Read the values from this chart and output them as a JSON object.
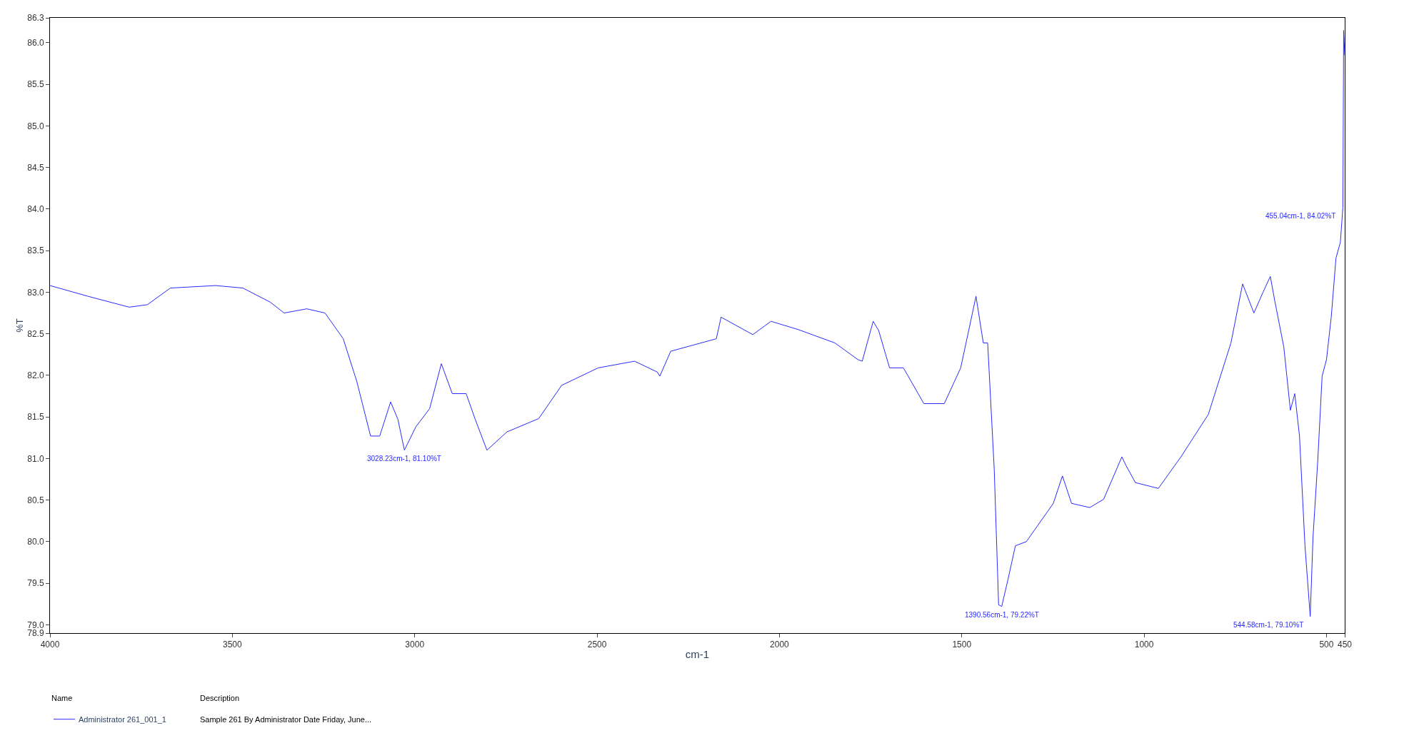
{
  "chart_data": {
    "type": "line",
    "xlabel": "cm-1",
    "ylabel": "%T",
    "xlim": [
      4000,
      450
    ],
    "xticks": [
      4000,
      3500,
      3000,
      2500,
      2000,
      1500,
      1000,
      500,
      450
    ],
    "ylim": [
      78.9,
      86.3
    ],
    "yticks": [
      {
        "value": 78.9,
        "label": "78.9"
      },
      {
        "value": 79.0,
        "label": "79.0"
      },
      {
        "value": 79.5,
        "label": "79.5"
      },
      {
        "value": 80.0,
        "label": "80.0"
      },
      {
        "value": 80.5,
        "label": "80.5"
      },
      {
        "value": 81.0,
        "label": "81.0"
      },
      {
        "value": 81.5,
        "label": "81.5"
      },
      {
        "value": 82.0,
        "label": "82.0"
      },
      {
        "value": 82.5,
        "label": "82.5"
      },
      {
        "value": 83.0,
        "label": "83.0"
      },
      {
        "value": 83.5,
        "label": "83.5"
      },
      {
        "value": 84.0,
        "label": "84.0"
      },
      {
        "value": 84.5,
        "label": "84.5"
      },
      {
        "value": 85.0,
        "label": "85.0"
      },
      {
        "value": 85.5,
        "label": "85.5"
      },
      {
        "value": 86.0,
        "label": "86.0"
      },
      {
        "value": 86.3,
        "label": "86.3"
      }
    ],
    "legend": "bottom",
    "marker": "none",
    "line_style": "solid",
    "series": [
      {
        "name": "Administrator 261_001_1",
        "color": "#2a2aff",
        "x": [
          4000,
          3895,
          3783,
          3733,
          3670,
          3546,
          3471,
          3396,
          3358,
          3296,
          3246,
          3196,
          3159,
          3121,
          3096,
          3066,
          3046,
          3028.23,
          2997,
          2959,
          2927,
          2897,
          2859,
          2834,
          2802,
          2747,
          2660,
          2597,
          2497,
          2397,
          2335,
          2328,
          2298,
          2173,
          2160,
          2073,
          2023,
          1948,
          1848,
          1785,
          1773,
          1743,
          1728,
          1698,
          1660,
          1604,
          1548,
          1503,
          1461,
          1441,
          1429,
          1411,
          1399,
          1390.56,
          1373,
          1353,
          1323,
          1249,
          1224,
          1199,
          1149,
          1111,
          1061,
          1049,
          1024,
          961,
          899,
          824,
          762,
          730,
          699,
          674,
          654,
          642,
          617,
          599,
          587,
          574,
          559,
          544.58,
          537,
          524,
          512,
          500,
          487,
          474,
          462,
          455.04,
          453,
          450
        ],
        "values": [
          83.08,
          82.95,
          82.82,
          82.85,
          83.05,
          83.08,
          83.05,
          82.88,
          82.75,
          82.8,
          82.75,
          82.44,
          81.93,
          81.27,
          81.27,
          81.68,
          81.47,
          81.1,
          81.38,
          81.6,
          82.14,
          81.78,
          81.78,
          81.47,
          81.1,
          81.32,
          81.48,
          81.88,
          82.09,
          82.17,
          82.04,
          81.99,
          82.29,
          82.44,
          82.7,
          82.49,
          82.65,
          82.55,
          82.39,
          82.19,
          82.17,
          82.65,
          82.54,
          82.09,
          82.09,
          81.66,
          81.66,
          82.09,
          82.95,
          82.39,
          82.39,
          80.87,
          79.24,
          79.22,
          79.55,
          79.95,
          80.0,
          80.46,
          80.79,
          80.46,
          80.41,
          80.51,
          81.02,
          80.91,
          80.71,
          80.64,
          81.02,
          81.53,
          82.39,
          83.1,
          82.75,
          83.0,
          83.19,
          82.9,
          82.34,
          81.58,
          81.78,
          81.27,
          79.95,
          79.1,
          80.05,
          80.97,
          81.99,
          82.19,
          82.7,
          83.41,
          83.6,
          84.02,
          86.15,
          85.85
        ]
      }
    ],
    "annotations": [
      {
        "text": "3028.23cm-1, 81.10%T",
        "x": 3028.23,
        "y": 81.1
      },
      {
        "text": "1390.56cm-1, 79.22%T",
        "x": 1390.56,
        "y": 79.22
      },
      {
        "text": "544.58cm-1, 79.10%T",
        "x": 544.58,
        "y": 79.1
      },
      {
        "text": "455.04cm-1, 84.02%T",
        "x": 455.04,
        "y": 84.02
      },
      "Name",
      "Description",
      "Sample 261 By Administrator Date Friday, June..."
    ]
  }
}
